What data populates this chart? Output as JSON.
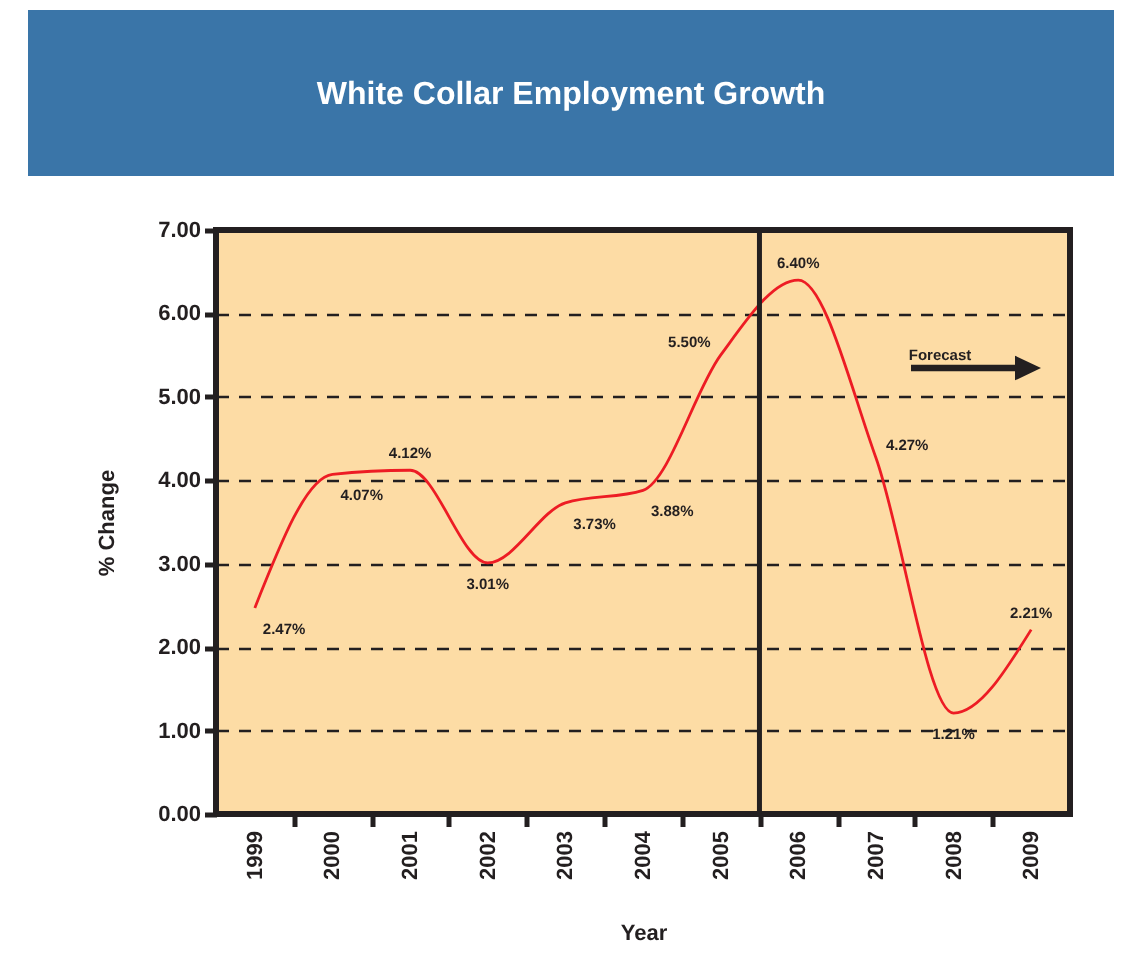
{
  "chart_data": {
    "type": "line",
    "title": "White Collar Employment Growth",
    "xlabel": "Year",
    "ylabel": "% Change",
    "x": [
      1999,
      2000,
      2001,
      2002,
      2003,
      2004,
      2005,
      2006,
      2007,
      2008,
      2009
    ],
    "values": [
      2.47,
      4.07,
      4.12,
      3.01,
      3.73,
      3.88,
      5.5,
      6.4,
      4.27,
      1.21,
      2.21
    ],
    "color": "#ed1c24",
    "value_labels": [
      "2.47%",
      "4.07%",
      "4.12%",
      "3.01%",
      "3.73%",
      "3.88%",
      "5.50%",
      "6.40%",
      "4.27%",
      "1.21%",
      "2.21%"
    ],
    "xlim": [
      1998.5,
      2009.5
    ],
    "xticks": [
      1999,
      {
        "value": 1999.5,
        "label": null
      },
      2000,
      {
        "value": 2000.5,
        "label": null
      },
      2001,
      {
        "value": 2001.5,
        "label": null
      },
      2002,
      {
        "value": 2002.5,
        "label": null
      },
      2003,
      {
        "value": 2003.5,
        "label": null
      },
      2004,
      {
        "value": 2004.5,
        "label": null
      },
      2005,
      {
        "value": 2005.5,
        "label": null
      },
      2006,
      {
        "value": 2006.5,
        "label": null
      },
      2007,
      {
        "value": 2007.5,
        "label": null
      },
      2008,
      {
        "value": 2008.5,
        "label": null
      },
      2009
    ],
    "ylim": [
      0,
      7
    ],
    "yticks": [
      {
        "value": 0,
        "label": "0.00"
      },
      {
        "value": 1,
        "label": "1.00"
      },
      {
        "value": 2,
        "label": "2.00"
      },
      {
        "value": 3,
        "label": "3.00"
      },
      {
        "value": 4,
        "label": "4.00"
      },
      {
        "value": 5,
        "label": "5.00"
      },
      {
        "value": 6,
        "label": "6.00"
      },
      {
        "value": 7,
        "label": "7.00"
      }
    ],
    "grid": "y",
    "line_style": "solid",
    "ref_lines": [
      {
        "axis": "x",
        "value": 2005.5,
        "color": "#231f20",
        "line_style": "solid"
      }
    ],
    "annotations": [
      "Forecast"
    ]
  }
}
